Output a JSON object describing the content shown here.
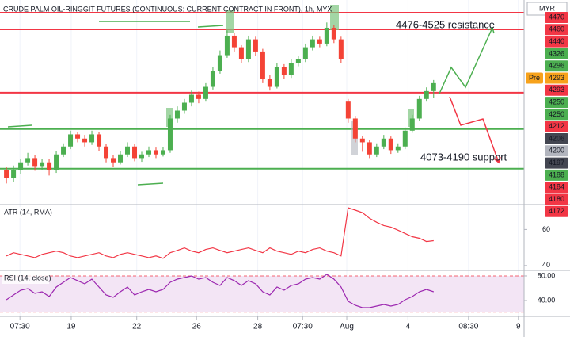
{
  "chart_data": [
    {
      "type": "candlestick",
      "title": "CRUDE PALM OIL-RINGGIT FUTURES (CONTINUOUS: CURRENT CONTRACT IN FRONT), 1h, MYX",
      "currency": "MYR",
      "up_color": "#4caf50",
      "down_color": "#f44336",
      "x": [
        0,
        1,
        2,
        3,
        4,
        5,
        6,
        7,
        8,
        9,
        10,
        11,
        12,
        13,
        14,
        15,
        16,
        17,
        18,
        19,
        20,
        21,
        22,
        23,
        24,
        25,
        26,
        27,
        28,
        29,
        30,
        31,
        32,
        33,
        34,
        35,
        36,
        37,
        38,
        39,
        40,
        41,
        42,
        43,
        44,
        45,
        46,
        47,
        48,
        49,
        50,
        51,
        52,
        53,
        54,
        55,
        56,
        57,
        58,
        59,
        60
      ],
      "open": [
        4215,
        4200,
        4215,
        4230,
        4238,
        4223,
        4230,
        4215,
        4245,
        4260,
        4283,
        4275,
        4268,
        4283,
        4260,
        4238,
        4230,
        4245,
        4260,
        4238,
        4245,
        4253,
        4245,
        4253,
        4313,
        4328,
        4343,
        4358,
        4350,
        4373,
        4403,
        4433,
        4470,
        4448,
        4425,
        4463,
        4440,
        4388,
        4373,
        4410,
        4395,
        4418,
        4425,
        4448,
        4463,
        4455,
        4485,
        4463,
        4345,
        4313,
        4275,
        4268,
        4245,
        4260,
        4275,
        4253,
        4260,
        4290,
        4313,
        4350,
        4365
      ],
      "high": [
        4222,
        4224,
        4236,
        4248,
        4244,
        4237,
        4236,
        4252,
        4266,
        4290,
        4288,
        4282,
        4290,
        4287,
        4265,
        4244,
        4252,
        4268,
        4265,
        4250,
        4260,
        4258,
        4259,
        4320,
        4336,
        4350,
        4366,
        4364,
        4380,
        4410,
        4442,
        4480,
        4476,
        4452,
        4470,
        4468,
        4445,
        4395,
        4418,
        4416,
        4425,
        4432,
        4455,
        4470,
        4468,
        4495,
        4490,
        4468,
        4350,
        4318,
        4280,
        4272,
        4266,
        4282,
        4279,
        4266,
        4296,
        4320,
        4356,
        4372,
        4386
      ],
      "low": [
        4190,
        4193,
        4208,
        4224,
        4214,
        4216,
        4205,
        4210,
        4240,
        4255,
        4268,
        4260,
        4263,
        4252,
        4230,
        4222,
        4226,
        4240,
        4232,
        4231,
        4240,
        4238,
        4241,
        4248,
        4305,
        4322,
        4336,
        4342,
        4345,
        4368,
        4398,
        4428,
        4440,
        4418,
        4420,
        4432,
        4380,
        4366,
        4370,
        4388,
        4390,
        4412,
        4420,
        4442,
        4448,
        4450,
        4456,
        4418,
        4305,
        4268,
        4250,
        4238,
        4240,
        4255,
        4246,
        4248,
        4255,
        4286,
        4308,
        4345,
        4352
      ],
      "close": [
        4200,
        4215,
        4230,
        4238,
        4223,
        4230,
        4215,
        4245,
        4260,
        4283,
        4275,
        4268,
        4283,
        4260,
        4238,
        4230,
        4245,
        4260,
        4238,
        4245,
        4253,
        4245,
        4253,
        4313,
        4328,
        4343,
        4358,
        4350,
        4373,
        4403,
        4433,
        4470,
        4448,
        4425,
        4463,
        4440,
        4388,
        4373,
        4410,
        4395,
        4418,
        4425,
        4448,
        4463,
        4455,
        4485,
        4463,
        4425,
        4313,
        4275,
        4268,
        4245,
        4260,
        4275,
        4253,
        4260,
        4290,
        4313,
        4350,
        4365,
        4380
      ],
      "xlim": [
        -0.9,
        72.7
      ],
      "ylim": [
        4150,
        4530
      ],
      "xticks": [
        {
          "value": 1.9,
          "label": "07:30"
        },
        {
          "value": 9.1,
          "label": "19"
        },
        {
          "value": 18.3,
          "label": "22"
        },
        {
          "value": 26.7,
          "label": "26"
        },
        {
          "value": 35.3,
          "label": "28"
        },
        {
          "value": 41.6,
          "label": "07:30"
        },
        {
          "value": 47.8,
          "label": "Aug"
        },
        {
          "value": 56.4,
          "label": "4"
        },
        {
          "value": 64.9,
          "label": "08:30"
        },
        {
          "value": 71.9,
          "label": "9"
        }
      ],
      "grid": true,
      "levels": [
        {
          "value": 4513.5,
          "color": "#f23645"
        },
        {
          "value": 4482,
          "color": "#f23645"
        },
        {
          "value": 4362,
          "color": "#f23645"
        },
        {
          "value": 4293,
          "color": "#4caf50"
        },
        {
          "value": 4218,
          "color": "#4caf50"
        }
      ],
      "annotations": [
        {
          "text": "4476-4525 resistance"
        },
        {
          "text": "4073-4190 support"
        }
      ],
      "price_scale": [
        {
          "label": "4470",
          "color": "#f23645"
        },
        {
          "label": "4460",
          "color": "#f23645"
        },
        {
          "label": "4440",
          "color": "#f23645"
        },
        {
          "label": "4326",
          "color": "#4caf50"
        },
        {
          "label": "4296",
          "color": "#4caf50"
        },
        {
          "label": "4293",
          "color": "#f7a21b",
          "tag": "Pre"
        },
        {
          "label": "4293",
          "color": "#f23645"
        },
        {
          "label": "4250",
          "color": "#4caf50"
        },
        {
          "label": "4250",
          "color": "#4caf50"
        },
        {
          "label": "4212",
          "color": "#f23645"
        },
        {
          "label": "4206",
          "color": "#434651"
        },
        {
          "label": "4200",
          "color": "#b2b5be"
        },
        {
          "label": "4197",
          "color": "#434651"
        },
        {
          "label": "4188",
          "color": "#4caf50"
        },
        {
          "label": "4184",
          "color": "#f23645"
        },
        {
          "label": "4180",
          "color": "#f23645"
        },
        {
          "label": "4172",
          "color": "#f23645"
        }
      ]
    },
    {
      "type": "line",
      "title": "ATR (14, RMA)",
      "color": "#f23645",
      "values": [
        45.3,
        47.1,
        46.2,
        45.3,
        44.4,
        46.2,
        47.1,
        48.0,
        47.1,
        45.3,
        44.4,
        45.3,
        46.2,
        47.1,
        45.3,
        44.4,
        46.2,
        47.1,
        46.2,
        45.3,
        44.4,
        45.3,
        44.0,
        47.1,
        48.4,
        49.8,
        48.0,
        47.1,
        48.9,
        49.8,
        48.4,
        47.1,
        48.0,
        48.9,
        49.8,
        48.4,
        47.1,
        49.8,
        48.0,
        47.1,
        46.2,
        48.0,
        47.1,
        48.9,
        49.8,
        48.0,
        47.1,
        45.3,
        72.0,
        70.7,
        69.3,
        66.2,
        64.0,
        62.2,
        61.3,
        59.6,
        57.8,
        56.0,
        55.1,
        53.3,
        53.8
      ],
      "ylim": [
        37.3,
        73.8
      ],
      "yticks": [
        60,
        40
      ]
    },
    {
      "type": "line",
      "title": "RSI (14, close)",
      "color": "#9c27b0",
      "values": [
        41.3,
        49.0,
        56.8,
        59.4,
        51.6,
        54.2,
        46.5,
        61.9,
        69.7,
        77.4,
        72.3,
        67.1,
        74.8,
        61.9,
        49.0,
        45.2,
        54.2,
        61.9,
        49.0,
        54.2,
        58.1,
        54.2,
        58.1,
        69.7,
        74.8,
        77.4,
        80.0,
        74.8,
        77.4,
        69.7,
        64.5,
        77.4,
        72.3,
        64.5,
        72.3,
        67.1,
        54.2,
        49.0,
        61.9,
        56.8,
        64.5,
        67.1,
        74.8,
        77.4,
        74.8,
        82.6,
        74.8,
        61.9,
        38.7,
        32.3,
        28.4,
        28.4,
        31.0,
        33.6,
        31.0,
        33.6,
        41.3,
        46.5,
        54.2,
        58.1,
        54.2
      ],
      "ylim": [
        15.5,
        87.7
      ],
      "yticks": [
        {
          "value": 80,
          "label": "80.00"
        },
        {
          "value": 40,
          "label": "40.00"
        }
      ],
      "bands": [
        80,
        21
      ]
    }
  ]
}
